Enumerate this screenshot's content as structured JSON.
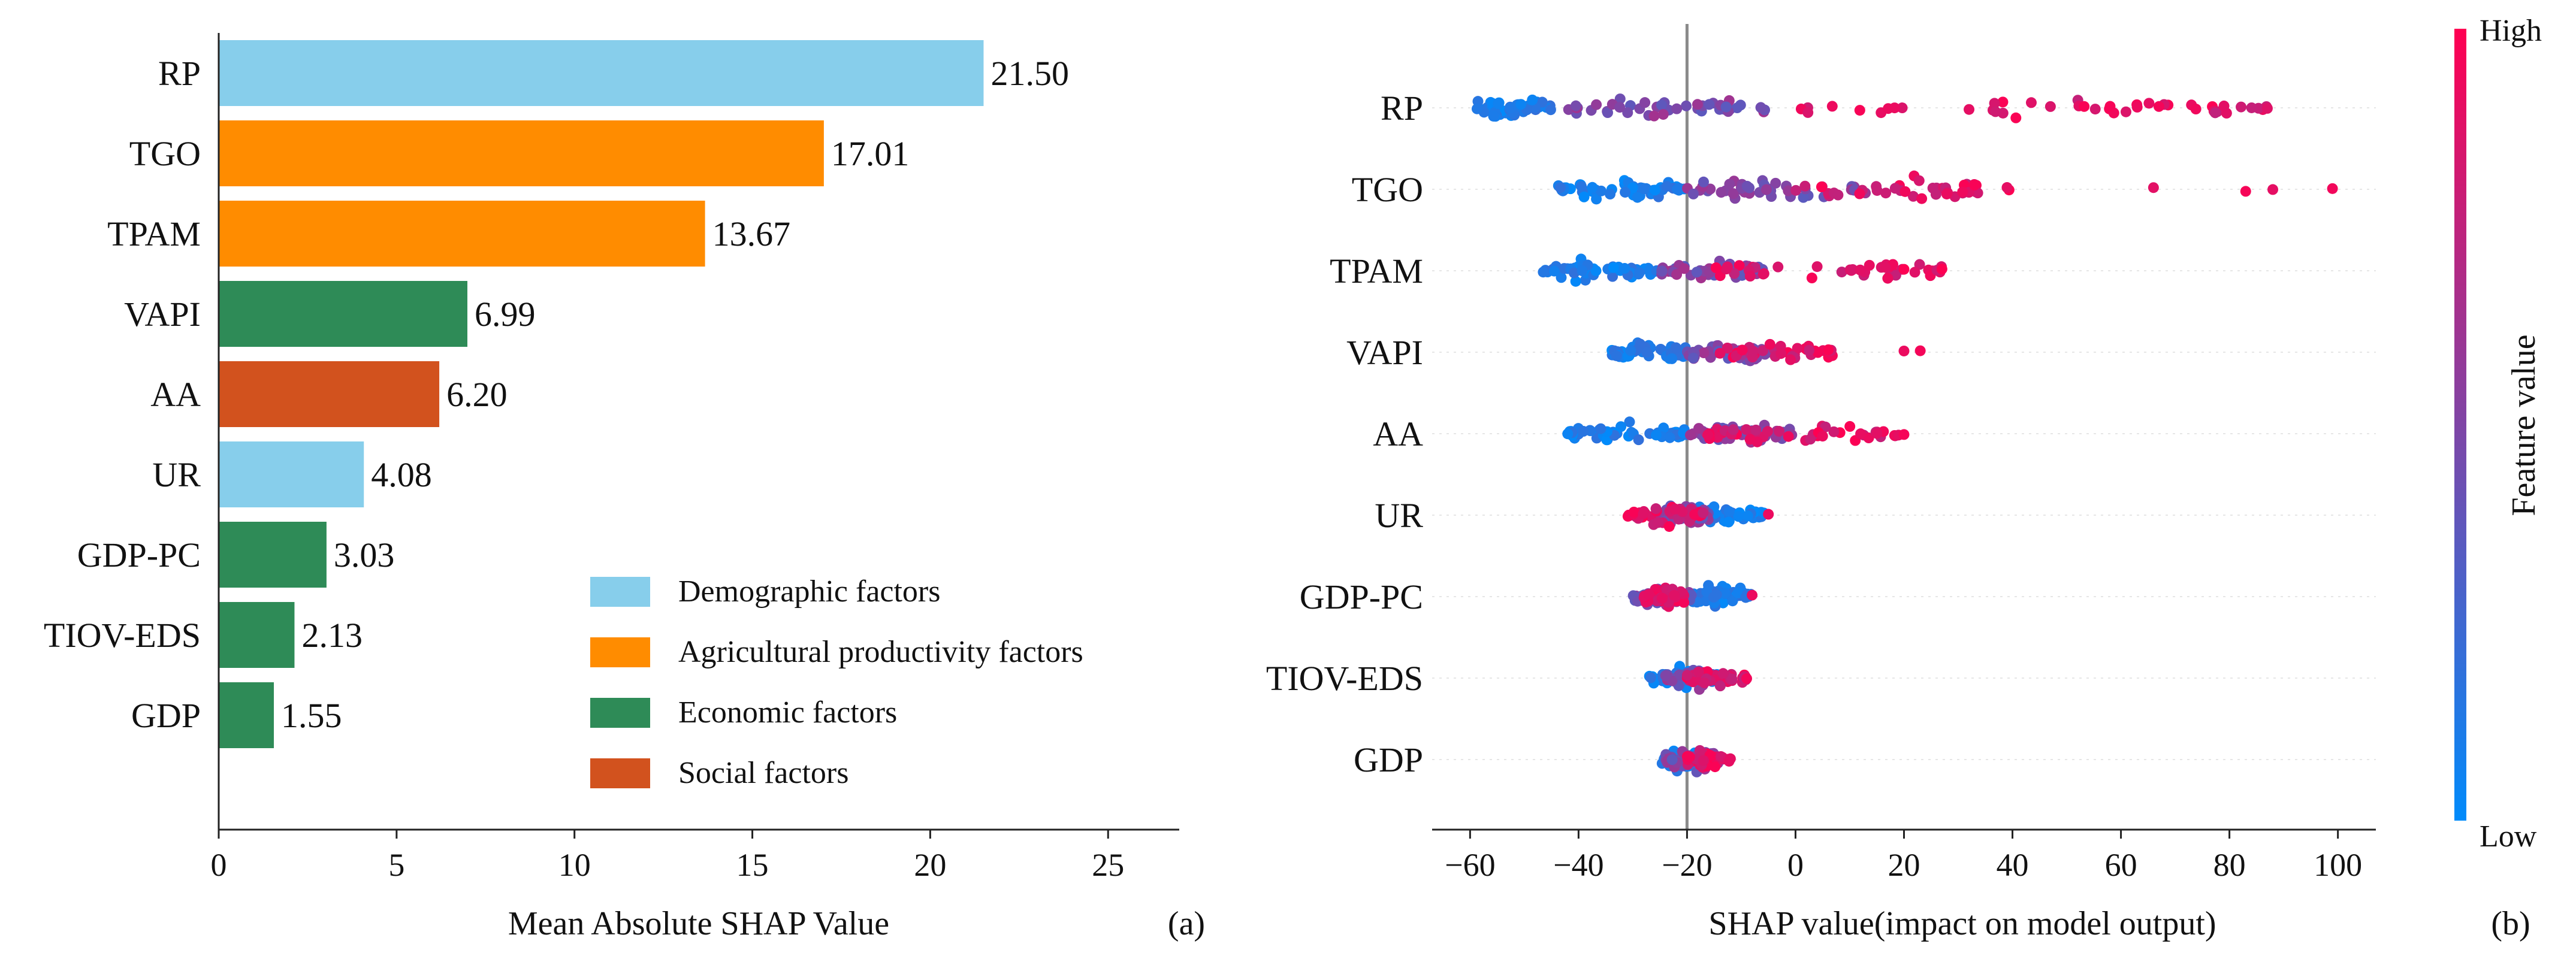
{
  "chart_data": [
    {
      "type": "bar",
      "orientation": "horizontal",
      "panel_label": "(a)",
      "xlabel": "Mean Absolute SHAP Value",
      "xlim": [
        0,
        27
      ],
      "xticks": [
        0,
        5,
        10,
        15,
        20,
        25
      ],
      "categories": [
        "RP",
        "TGO",
        "TPAM",
        "VAPI",
        "AA",
        "UR",
        "GDP-PC",
        "TIOV-EDS",
        "GDP"
      ],
      "values": [
        21.5,
        17.01,
        13.67,
        6.99,
        6.2,
        4.08,
        3.03,
        2.13,
        1.55
      ],
      "value_labels": [
        "21.50",
        "17.01",
        "13.67",
        "6.99",
        "6.20",
        "4.08",
        "3.03",
        "2.13",
        "1.55"
      ],
      "groups": [
        "Demographic factors",
        "Agricultural productivity factors",
        "Agricultural productivity factors",
        "Economic factors",
        "Social factors",
        "Demographic factors",
        "Economic factors",
        "Economic factors",
        "Economic factors"
      ],
      "legend": {
        "placement": "lower-right",
        "entries": [
          {
            "label": "Demographic factors",
            "color": "#87ceeb"
          },
          {
            "label": "Agricultural productivity factors",
            "color": "#ff8c00"
          },
          {
            "label": "Economic factors",
            "color": "#2e8b57"
          },
          {
            "label": "Social factors",
            "color": "#d2521e"
          }
        ]
      }
    },
    {
      "type": "scatter",
      "subtype": "shap-beeswarm",
      "panel_label": "(b)",
      "xlabel": "SHAP value(impact on model output)",
      "xlim": [
        -67,
        107
      ],
      "xticks": [
        -60,
        -40,
        -20,
        0,
        20,
        40,
        60,
        80,
        100
      ],
      "baseline": -20,
      "features": [
        "RP",
        "TGO",
        "TPAM",
        "VAPI",
        "AA",
        "UR",
        "GDP-PC",
        "TIOV-EDS",
        "GDP"
      ],
      "series": [
        {
          "feature": "RP",
          "low_range": [
            -60,
            -45
          ],
          "mid_range": [
            -42,
            -5
          ],
          "high_range": [
            0,
            87
          ],
          "extremes": [
            47,
            58,
            63,
            67,
            79,
            87
          ]
        },
        {
          "feature": "TGO",
          "low_range": [
            -44,
            -20
          ],
          "mid_range": [
            -20,
            15
          ],
          "high_range": [
            0,
            40
          ],
          "extremes": [
            39,
            66,
            83,
            88,
            99
          ]
        },
        {
          "feature": "TPAM",
          "low_range": [
            -47,
            -25
          ],
          "mid_range": [
            -25,
            -5
          ],
          "high_range": [
            -15,
            27
          ],
          "extremes": [
            20,
            22,
            27
          ]
        },
        {
          "feature": "VAPI",
          "low_range": [
            -34,
            -20
          ],
          "mid_range": [
            -20,
            -5
          ],
          "high_range": [
            -14,
            7
          ],
          "extremes": [
            20,
            23
          ]
        },
        {
          "feature": "AA",
          "low_range": [
            -42,
            -20
          ],
          "mid_range": [
            -20,
            0
          ],
          "high_range": [
            -18,
            20
          ],
          "extremes": [
            -42,
            5,
            12,
            15,
            20
          ]
        },
        {
          "feature": "UR",
          "low_range": [
            -22,
            -5
          ],
          "mid_range": [
            -26,
            -16
          ],
          "high_range": [
            -31,
            -17
          ],
          "extremes": [
            -5
          ]
        },
        {
          "feature": "GDP-PC",
          "low_range": [
            -20,
            -8
          ],
          "mid_range": [
            -30,
            -18
          ],
          "high_range": [
            -28,
            -20
          ],
          "extremes": [
            -8
          ]
        },
        {
          "feature": "TIOV-EDS",
          "low_range": [
            -27,
            -14
          ],
          "mid_range": [
            -24,
            -14
          ],
          "high_range": [
            -20,
            -9
          ],
          "extremes": [
            -9
          ]
        },
        {
          "feature": "GDP",
          "low_range": [
            -25,
            -14
          ],
          "mid_range": [
            -24,
            -14
          ],
          "high_range": [
            -20,
            -12
          ],
          "extremes": [
            -12
          ]
        }
      ],
      "colorbar": {
        "label": "Feature value",
        "high_label": "High",
        "low_label": "Low",
        "color_high": "#ff0052",
        "color_low": "#008bfb"
      }
    }
  ]
}
